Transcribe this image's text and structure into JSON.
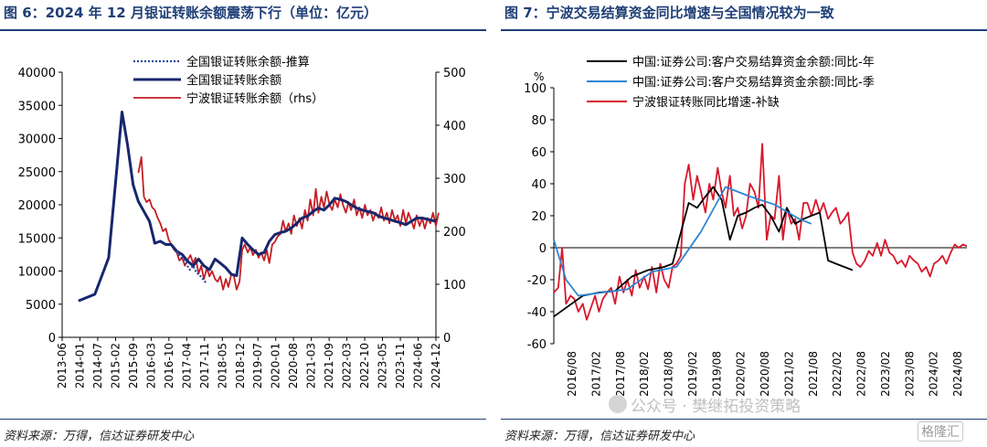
{
  "left": {
    "title": "图 6：2024 年 12 月银证转账余额震荡下行（单位：亿元）",
    "source": "资料来源：万得，信达证券研发中心",
    "chart_data": {
      "type": "line",
      "title": "图 6：2024 年 12 月银证转账余额震荡下行（单位：亿元）",
      "ylim": [
        0,
        40000
      ],
      "y2lim": [
        0,
        500
      ],
      "yticks": [
        "0",
        "5000",
        "10000",
        "15000",
        "20000",
        "25000",
        "30000",
        "35000",
        "40000"
      ],
      "y2ticks": [
        "0",
        "100",
        "200",
        "300",
        "400",
        "500"
      ],
      "xticks": [
        "2013-06",
        "2014-01",
        "2014-07",
        "2015-02",
        "2015-09",
        "2016-03",
        "2016-10",
        "2017-04",
        "2017-11",
        "2018-05",
        "2018-12",
        "2019-07",
        "2020-01",
        "2020-08",
        "2021-03",
        "2021-09",
        "2022-03",
        "2022-10",
        "2023-05",
        "2023-11",
        "2024-06",
        "2024-12"
      ],
      "legend": [
        "全国银证转账余额-推算",
        "全国银证转账余额",
        "宁波银证转账余额（rhs）"
      ],
      "series": [
        {
          "name": "全国银证转账余额-推算",
          "axis": "left",
          "color": "#2a4a9b",
          "style": "dotted",
          "x": [
            2017.0,
            2017.1,
            2017.2,
            2017.3,
            2017.4,
            2017.5,
            2017.6,
            2017.7,
            2017.8,
            2017.9
          ],
          "values": [
            13000,
            12200,
            11800,
            11000,
            10200,
            10800,
            9800,
            9400,
            8800,
            8200
          ]
        },
        {
          "name": "全国银证转账余额",
          "axis": "left",
          "color": "#16276e",
          "style": "solid",
          "x": [
            2014.0,
            2014.5,
            2014.92,
            2015.33,
            2015.5,
            2015.67,
            2015.83,
            2016.0,
            2016.17,
            2016.33,
            2016.5,
            2016.67,
            2016.83,
            2017.0,
            2017.17,
            2017.33,
            2017.5,
            2017.67,
            2017.83,
            2018.0,
            2018.17,
            2018.33,
            2018.5,
            2018.67,
            2018.83,
            2019.0,
            2019.17,
            2019.33,
            2019.5,
            2019.67,
            2019.83,
            2020.0,
            2020.17,
            2020.33,
            2020.5,
            2020.67,
            2020.83,
            2021.0,
            2021.17,
            2021.33,
            2021.5,
            2021.67,
            2021.83,
            2022.0,
            2022.17,
            2022.33,
            2022.5,
            2022.67,
            2022.83,
            2023.0,
            2023.17,
            2023.33,
            2023.5,
            2023.67,
            2023.83,
            2024.0,
            2024.17,
            2024.33,
            2024.5,
            2024.67,
            2024.83,
            2024.92
          ],
          "values": [
            5500,
            6500,
            12000,
            34000,
            29000,
            23000,
            20500,
            19000,
            17500,
            14200,
            14500,
            14000,
            14000,
            13000,
            12500,
            11500,
            10800,
            11800,
            10800,
            10200,
            11800,
            11200,
            10500,
            9500,
            9300,
            15000,
            14000,
            13200,
            12500,
            12800,
            14500,
            15500,
            15800,
            16000,
            16500,
            17200,
            18000,
            18300,
            19000,
            19500,
            19200,
            20000,
            21000,
            20800,
            20500,
            20000,
            19500,
            19200,
            19000,
            18800,
            18300,
            18000,
            17800,
            17500,
            17300,
            17000,
            17500,
            18000,
            18000,
            17800,
            17600,
            17500
          ]
        },
        {
          "name": "宁波银证转账余额（rhs）",
          "axis": "right",
          "color": "#c41e24",
          "style": "solid",
          "x": [
            2015.83,
            2015.92,
            2016.0,
            2016.08,
            2016.17,
            2016.25,
            2016.33,
            2016.42,
            2016.5,
            2016.58,
            2016.67,
            2016.75,
            2016.83,
            2016.92,
            2017.0,
            2017.08,
            2017.17,
            2017.25,
            2017.33,
            2017.42,
            2017.5,
            2017.58,
            2017.67,
            2017.75,
            2017.83,
            2017.92,
            2018.0,
            2018.08,
            2018.17,
            2018.25,
            2018.33,
            2018.42,
            2018.5,
            2018.58,
            2018.67,
            2018.75,
            2018.83,
            2018.92,
            2019.0,
            2019.08,
            2019.17,
            2019.25,
            2019.33,
            2019.42,
            2019.5,
            2019.58,
            2019.67,
            2019.75,
            2019.83,
            2019.92,
            2020.0,
            2020.08,
            2020.17,
            2020.25,
            2020.33,
            2020.42,
            2020.5,
            2020.58,
            2020.67,
            2020.75,
            2020.83,
            2020.92,
            2021.0,
            2021.08,
            2021.17,
            2021.25,
            2021.33,
            2021.42,
            2021.5,
            2021.58,
            2021.67,
            2021.75,
            2021.83,
            2021.92,
            2022.0,
            2022.08,
            2022.17,
            2022.25,
            2022.33,
            2022.42,
            2022.5,
            2022.58,
            2022.67,
            2022.75,
            2022.83,
            2022.92,
            2023.0,
            2023.08,
            2023.17,
            2023.25,
            2023.33,
            2023.42,
            2023.5,
            2023.58,
            2023.67,
            2023.75,
            2023.83,
            2023.92,
            2024.0,
            2024.08,
            2024.17,
            2024.25,
            2024.33,
            2024.42,
            2024.5,
            2024.58,
            2024.67,
            2024.75,
            2024.83,
            2024.92,
            2025.0
          ],
          "values": [
            310,
            340,
            265,
            255,
            260,
            245,
            240,
            225,
            215,
            200,
            205,
            185,
            175,
            165,
            160,
            145,
            150,
            135,
            145,
            155,
            140,
            150,
            120,
            135,
            110,
            130,
            115,
            125,
            110,
            105,
            115,
            90,
            110,
            95,
            120,
            115,
            90,
            105,
            165,
            175,
            160,
            170,
            155,
            165,
            150,
            160,
            145,
            165,
            140,
            175,
            180,
            190,
            195,
            220,
            200,
            215,
            195,
            230,
            210,
            225,
            205,
            240,
            220,
            260,
            230,
            280,
            235,
            265,
            245,
            275,
            250,
            240,
            260,
            245,
            270,
            250,
            235,
            255,
            240,
            260,
            230,
            245,
            225,
            250,
            230,
            240,
            220,
            235,
            225,
            245,
            220,
            235,
            215,
            240,
            220,
            230,
            210,
            240,
            215,
            235,
            220,
            205,
            230,
            210,
            225,
            205,
            225,
            215,
            235,
            210,
            235
          ]
        }
      ]
    }
  },
  "right": {
    "title": "图 7：宁波交易结算资金同比增速与全国情况较为一致",
    "source": "资料来源：万得，信达证券研发中心",
    "chart_data": {
      "type": "line",
      "title": "图 7：宁波交易结算资金同比增速与全国情况较为一致",
      "ylabel": "%",
      "ylim": [
        -60,
        100
      ],
      "yticks": [
        "-60",
        "-40",
        "-20",
        "0",
        "20",
        "40",
        "60",
        "80",
        "100"
      ],
      "xticks": [
        "2016/08",
        "2017/02",
        "2017/08",
        "2018/02",
        "2018/08",
        "2019/02",
        "2019/08",
        "2020/02",
        "2020/08",
        "2021/02",
        "2021/08",
        "2022/02",
        "2022/08",
        "2023/02",
        "2023/08",
        "2024/02",
        "2024/08"
      ],
      "legend": [
        "中国:证券公司:客户交易结算资金余额:同比-年",
        "中国:证券公司:客户交易结算资金余额:同比-季",
        "宁波银证转账同比增速-补缺"
      ],
      "series": [
        {
          "name": "中国:证券公司:客户交易结算资金余额:同比-年",
          "color": "#000000",
          "x": [
            2016.58,
            2017.17,
            2017.5,
            2017.83,
            2018.17,
            2018.5,
            2018.83,
            2019.0,
            2019.33,
            2019.5,
            2019.67,
            2019.83,
            2020.0,
            2020.17,
            2020.33,
            2020.5,
            2020.67,
            2020.83,
            2021.0,
            2021.17,
            2021.33,
            2021.5,
            2021.67,
            2021.83,
            2022.0,
            2022.17,
            2022.33,
            2022.5,
            2022.67
          ],
          "values": [
            -43,
            -30,
            -28,
            -27,
            -18,
            -14,
            -12,
            -10,
            28,
            25,
            32,
            38,
            30,
            5,
            20,
            22,
            25,
            27,
            20,
            10,
            25,
            15,
            18,
            20,
            22,
            -8,
            -10,
            -12,
            -14
          ]
        },
        {
          "name": "中国:证券公司:客户交易结算资金余额:同比-季",
          "color": "#2a86d4",
          "x": [
            2016.58,
            2016.83,
            2017.08,
            2017.58,
            2018.08,
            2018.58,
            2019.08,
            2019.58,
            2020.08,
            2020.58,
            2021.08,
            2021.58,
            2021.83
          ],
          "values": [
            5,
            -20,
            -30,
            -28,
            -26,
            -15,
            -12,
            10,
            38,
            32,
            27,
            18,
            15
          ]
        },
        {
          "name": "宁波银证转账同比增速-补缺",
          "color": "#d9182c",
          "x": [
            2016.58,
            2016.67,
            2016.75,
            2016.83,
            2016.92,
            2017.0,
            2017.08,
            2017.17,
            2017.25,
            2017.33,
            2017.42,
            2017.5,
            2017.58,
            2017.67,
            2017.75,
            2017.83,
            2017.92,
            2018.0,
            2018.08,
            2018.17,
            2018.25,
            2018.33,
            2018.42,
            2018.5,
            2018.58,
            2018.67,
            2018.75,
            2018.83,
            2018.92,
            2019.0,
            2019.08,
            2019.17,
            2019.25,
            2019.33,
            2019.42,
            2019.5,
            2019.58,
            2019.67,
            2019.75,
            2019.83,
            2019.92,
            2020.0,
            2020.08,
            2020.17,
            2020.25,
            2020.33,
            2020.42,
            2020.5,
            2020.58,
            2020.67,
            2020.75,
            2020.83,
            2020.92,
            2021.0,
            2021.08,
            2021.17,
            2021.25,
            2021.33,
            2021.42,
            2021.5,
            2021.58,
            2021.67,
            2021.75,
            2021.83,
            2021.92,
            2022.0,
            2022.08,
            2022.17,
            2022.25,
            2022.33,
            2022.42,
            2022.5,
            2022.58,
            2022.67,
            2022.75,
            2022.83,
            2022.92,
            2023.0,
            2023.08,
            2023.17,
            2023.25,
            2023.33,
            2023.42,
            2023.5,
            2023.58,
            2023.67,
            2023.75,
            2023.83,
            2023.92,
            2024.0,
            2024.08,
            2024.17,
            2024.25,
            2024.33,
            2024.42,
            2024.5,
            2024.58,
            2024.67,
            2024.75,
            2024.83,
            2024.92,
            2025.0
          ],
          "values": [
            -28,
            -25,
            0,
            -35,
            -30,
            -32,
            -40,
            -35,
            -45,
            -38,
            -30,
            -40,
            -32,
            -28,
            -25,
            -35,
            -18,
            -28,
            -20,
            -30,
            -14,
            -25,
            -18,
            -26,
            -12,
            -28,
            -10,
            -20,
            -25,
            -12,
            -10,
            -5,
            40,
            52,
            30,
            45,
            35,
            22,
            40,
            30,
            50,
            35,
            25,
            45,
            20,
            25,
            12,
            20,
            40,
            35,
            25,
            65,
            5,
            20,
            18,
            45,
            5,
            25,
            15,
            18,
            5,
            28,
            28,
            20,
            30,
            22,
            28,
            18,
            22,
            25,
            15,
            18,
            22,
            -3,
            -10,
            -12,
            -8,
            -2,
            -5,
            3,
            -5,
            5,
            -3,
            -5,
            -10,
            -8,
            -12,
            -5,
            -8,
            -10,
            -15,
            -12,
            -18,
            -10,
            -8,
            -5,
            -10,
            -3,
            2,
            0,
            2,
            1
          ]
        }
      ]
    }
  },
  "watermark": "公众号 · 樊继拓投资策略",
  "logo": "格隆汇"
}
